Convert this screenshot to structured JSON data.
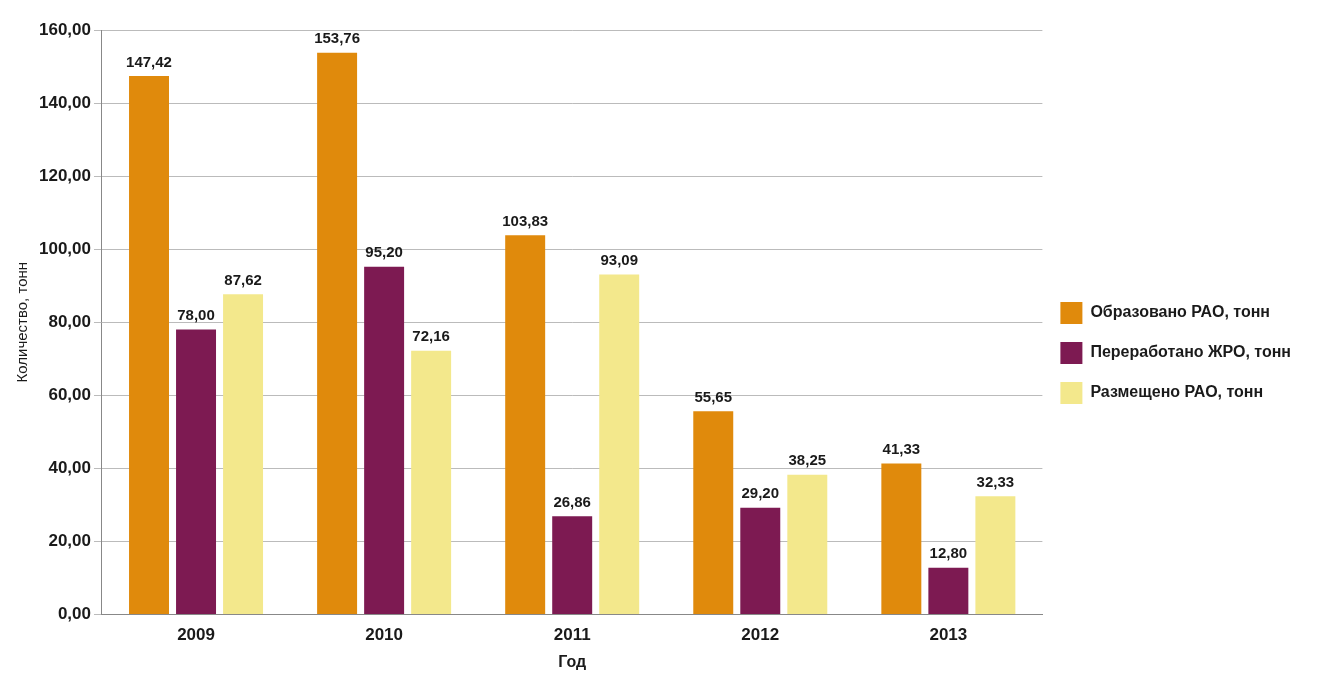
{
  "chart_data": {
    "type": "bar",
    "categories": [
      "2009",
      "2010",
      "2011",
      "2012",
      "2013"
    ],
    "series": [
      {
        "name": "Образовано РАО, тонн",
        "color": "#e08a0c",
        "values": [
          147.42,
          153.76,
          103.83,
          55.65,
          41.33
        ],
        "value_labels": [
          "147,42",
          "153,76",
          "103,83",
          "55,65",
          "41,33"
        ]
      },
      {
        "name": "Переработано ЖРО, тонн",
        "color": "#7d1a52",
        "values": [
          78.0,
          95.2,
          26.86,
          29.2,
          12.8
        ],
        "value_labels": [
          "78,00",
          "95,20",
          "26,86",
          "29,20",
          "12,80"
        ]
      },
      {
        "name": "Размещено РАО, тонн",
        "color": "#f3e88c",
        "values": [
          87.62,
          72.16,
          93.09,
          38.25,
          32.33
        ],
        "value_labels": [
          "87,62",
          "72,16",
          "93,09",
          "38,25",
          "32,33"
        ]
      }
    ],
    "x_label": "Год",
    "y_label": "Количество, тонн",
    "ylim": [
      0,
      160
    ],
    "yticks": [
      {
        "value": 0,
        "label": "0,00"
      },
      {
        "value": 20,
        "label": "20,00"
      },
      {
        "value": 40,
        "label": "40,00"
      },
      {
        "value": 60,
        "label": "60,00"
      },
      {
        "value": 80,
        "label": "80,00"
      },
      {
        "value": 100,
        "label": "100,00"
      },
      {
        "value": 120,
        "label": "120,00"
      },
      {
        "value": 140,
        "label": "140,00"
      },
      {
        "value": 160,
        "label": "160,00"
      }
    ],
    "grid": true,
    "legend": "right",
    "data_labels": true
  }
}
